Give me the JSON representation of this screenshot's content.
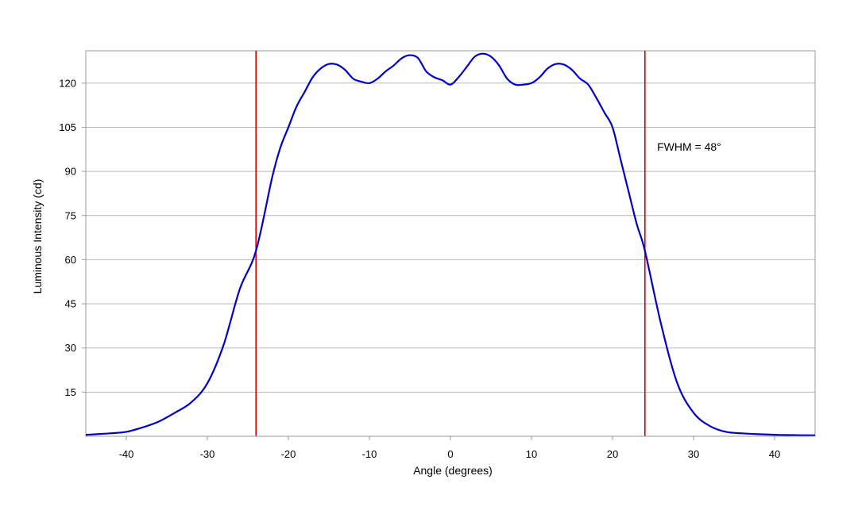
{
  "chart_data": {
    "type": "line",
    "title": "",
    "xlabel": "Angle (degrees)",
    "ylabel": "Luminous Intensity (cd)",
    "xlim": [
      -45,
      45
    ],
    "ylim": [
      0,
      131
    ],
    "x_ticks": [
      -40,
      -30,
      -20,
      -10,
      0,
      10,
      20,
      30,
      40
    ],
    "y_ticks": [
      15,
      30,
      45,
      60,
      75,
      90,
      105,
      120
    ],
    "grid": "horizontal",
    "legend": "none",
    "series": [
      {
        "color": "#0000cc",
        "x": [
          -45,
          -42,
          -40,
          -38,
          -36,
          -34,
          -32,
          -30,
          -28,
          -26,
          -24,
          -22,
          -21,
          -20,
          -19,
          -18,
          -17,
          -16,
          -15,
          -14,
          -13,
          -12,
          -11,
          -10,
          -9,
          -8,
          -7,
          -6,
          -5,
          -4,
          -3,
          -2,
          -1,
          0,
          1,
          2,
          3,
          4,
          5,
          6,
          7,
          8,
          9,
          10,
          11,
          12,
          13,
          14,
          15,
          16,
          17,
          18,
          19,
          20,
          21,
          22,
          23,
          24,
          26,
          28,
          30,
          32,
          34,
          36,
          38,
          40,
          42,
          45
        ],
        "y": [
          0.5,
          1,
          1.5,
          3,
          5,
          8,
          11.5,
          18,
          31,
          50,
          63,
          88,
          98,
          105,
          112,
          117,
          122,
          125,
          126.5,
          126.3,
          124.5,
          121.5,
          120.5,
          120,
          121.5,
          124,
          126,
          128.5,
          129.5,
          128.5,
          124,
          122,
          121,
          119.5,
          122,
          125.5,
          129,
          130,
          129,
          126,
          121.5,
          119.5,
          119.5,
          120,
          122,
          125,
          126.5,
          126.3,
          124.5,
          121.5,
          119.5,
          115,
          110,
          105,
          94,
          83,
          72,
          63,
          38,
          18,
          8,
          3.5,
          1.5,
          1,
          0.7,
          0.5,
          0.4,
          0.3
        ]
      }
    ],
    "vertical_lines": [
      {
        "x": -24,
        "color": "#dd0000"
      },
      {
        "x": 24,
        "color": "#dd0000"
      }
    ],
    "annotations": [
      {
        "text": "FWHM = 48°",
        "x": 25.5,
        "y": 97
      }
    ]
  }
}
